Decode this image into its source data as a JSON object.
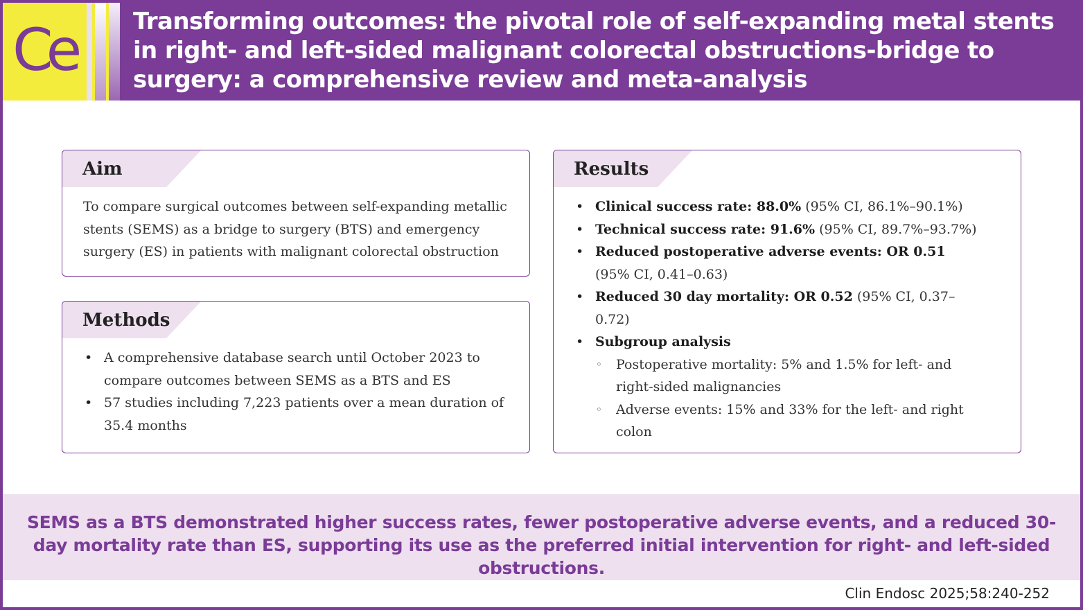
{
  "header": {
    "logo_text": "Ce",
    "title": "Transforming outcomes: the pivotal role of self-expanding metal stents in right- and left-sided malignant colorectal obstructions-bridge to surgery: a comprehensive review and meta-analysis"
  },
  "colors": {
    "brand_purple": "#7a3c97",
    "logo_yellow": "#f3ec3c",
    "tab_lavender": "#eee0ef"
  },
  "aim": {
    "heading": "Aim",
    "text": "To compare surgical outcomes between self-expanding metallic stents (SEMS)  as a bridge to surgery (BTS) and emergency surgery (ES) in patients with malignant colorectal obstruction"
  },
  "methods": {
    "heading": "Methods",
    "items": [
      "A comprehensive database search until October 2023 to compare outcomes between SEMS as a BTS and ES",
      "57 studies including 7,223 patients over a mean duration of 35.4 months"
    ]
  },
  "results": {
    "heading": "Results",
    "items": [
      {
        "label": "Clinical success rate: 88.0%",
        "detail": " (95% CI, 86.1%–90.1%)"
      },
      {
        "label": "Technical success rate: 91.6%",
        "detail": " (95% CI, 89.7%–93.7%)"
      },
      {
        "label": "Reduced postoperative adverse events: OR 0.51",
        "detail": " (95% CI, 0.41–0.63)"
      },
      {
        "label": "Reduced 30 day mortality: OR 0.52",
        "detail": " (95% CI, 0.37–0.72)"
      },
      {
        "label": "Subgroup analysis",
        "detail": ""
      }
    ],
    "subitems": [
      "Postoperative mortality: 5% and 1.5% for left- and right-sided malignancies",
      "Adverse events: 15% and 33% for the left- and right colon"
    ]
  },
  "conclusion": "SEMS as a BTS demonstrated higher success rates, fewer postoperative adverse events, and a reduced 30-day mortality rate than ES, supporting its use as the preferred initial intervention for right- and left-sided obstructions.",
  "citation": "Clin Endosc 2025;58:240-252"
}
